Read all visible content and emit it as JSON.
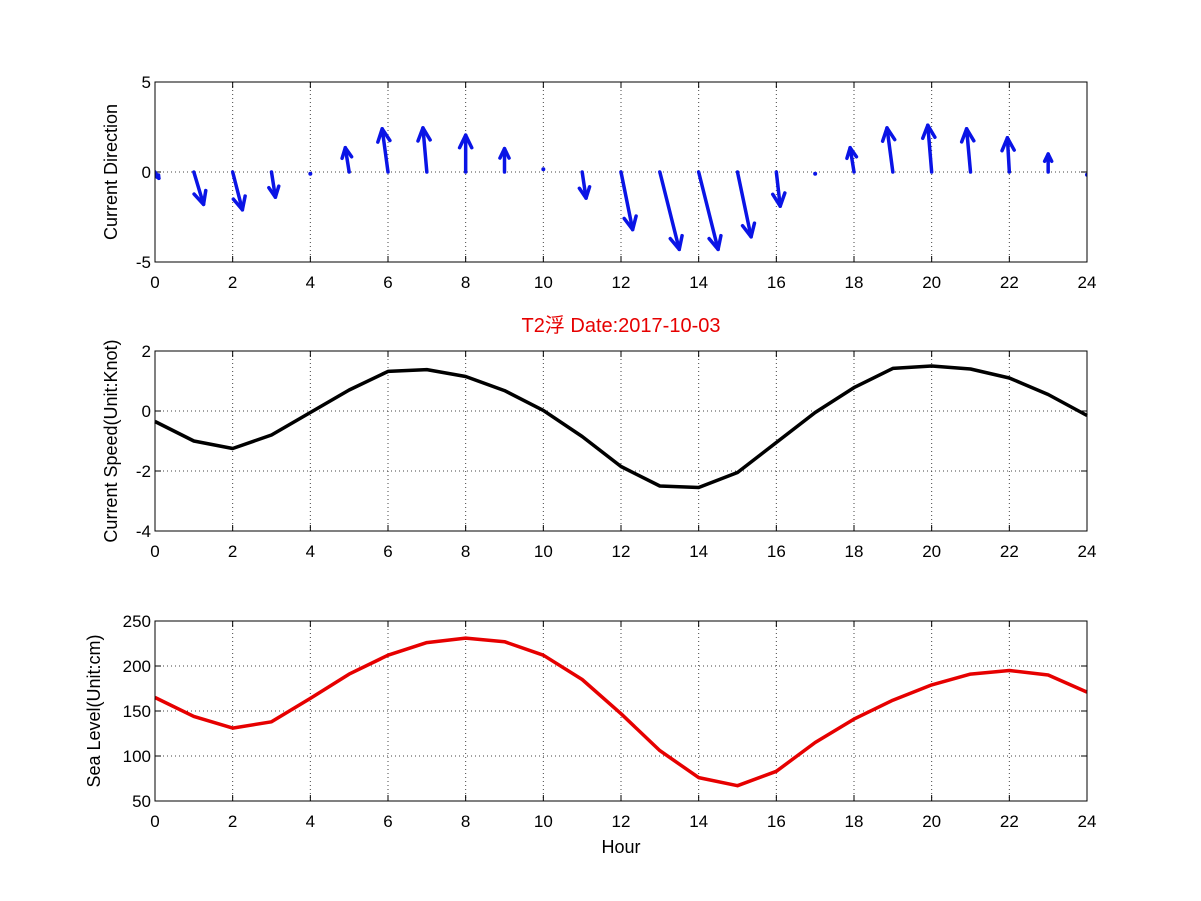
{
  "figure_title": "T2浮   Date:2017-10-03",
  "colors": {
    "quiver": "#0a14e6",
    "speed": "#000000",
    "sea_level": "#e60000",
    "title": "#e60000"
  },
  "chart_data": [
    {
      "type": "quiver",
      "ylabel": "Current Direction",
      "xlabel": "",
      "xlim": [
        0,
        24
      ],
      "ylim": [
        -5,
        5
      ],
      "xticks": [
        0,
        2,
        4,
        6,
        8,
        10,
        12,
        14,
        16,
        18,
        20,
        22,
        24
      ],
      "yticks": [
        -5,
        0,
        5
      ],
      "grid": true,
      "arrows": [
        {
          "x": 0,
          "u": 0.1,
          "v": -0.35
        },
        {
          "x": 1,
          "u": 0.25,
          "v": -1.8
        },
        {
          "x": 2,
          "u": 0.25,
          "v": -2.1
        },
        {
          "x": 3,
          "u": 0.1,
          "v": -1.4
        },
        {
          "x": 4,
          "u": 0.0,
          "v": -0.1
        },
        {
          "x": 5,
          "u": -0.1,
          "v": 1.35
        },
        {
          "x": 6,
          "u": -0.15,
          "v": 2.4
        },
        {
          "x": 7,
          "u": -0.1,
          "v": 2.45
        },
        {
          "x": 8,
          "u": 0.0,
          "v": 2.05
        },
        {
          "x": 9,
          "u": 0.0,
          "v": 1.3
        },
        {
          "x": 10,
          "u": 0.0,
          "v": 0.15
        },
        {
          "x": 11,
          "u": 0.1,
          "v": -1.45
        },
        {
          "x": 12,
          "u": 0.3,
          "v": -3.2
        },
        {
          "x": 13,
          "u": 0.5,
          "v": -4.3
        },
        {
          "x": 14,
          "u": 0.5,
          "v": -4.3
        },
        {
          "x": 15,
          "u": 0.35,
          "v": -3.6
        },
        {
          "x": 16,
          "u": 0.1,
          "v": -1.9
        },
        {
          "x": 17,
          "u": 0.0,
          "v": -0.1
        },
        {
          "x": 18,
          "u": -0.1,
          "v": 1.35
        },
        {
          "x": 19,
          "u": -0.15,
          "v": 2.45
        },
        {
          "x": 20,
          "u": -0.1,
          "v": 2.6
        },
        {
          "x": 21,
          "u": -0.1,
          "v": 2.4
        },
        {
          "x": 22,
          "u": -0.05,
          "v": 1.9
        },
        {
          "x": 23,
          "u": 0.0,
          "v": 1.0
        },
        {
          "x": 24,
          "u": 0.0,
          "v": -0.15
        }
      ]
    },
    {
      "type": "line",
      "ylabel": "Current Speed(Unit:Knot)",
      "xlabel": "",
      "xlim": [
        0,
        24
      ],
      "ylim": [
        -4,
        2
      ],
      "xticks": [
        0,
        2,
        4,
        6,
        8,
        10,
        12,
        14,
        16,
        18,
        20,
        22,
        24
      ],
      "yticks": [
        -4,
        -2,
        0,
        2
      ],
      "grid": true,
      "x": [
        0,
        1,
        2,
        3,
        4,
        5,
        6,
        7,
        8,
        9,
        10,
        11,
        12,
        13,
        14,
        15,
        16,
        17,
        18,
        19,
        20,
        21,
        22,
        23,
        24
      ],
      "series": [
        {
          "values": [
            -0.35,
            -1.0,
            -1.25,
            -0.8,
            -0.05,
            0.7,
            1.32,
            1.38,
            1.15,
            0.68,
            0.02,
            -0.85,
            -1.85,
            -2.5,
            -2.55,
            -2.05,
            -1.05,
            -0.05,
            0.78,
            1.42,
            1.5,
            1.4,
            1.1,
            0.55,
            -0.15
          ]
        }
      ]
    },
    {
      "type": "line",
      "ylabel": "Sea Level(Unit:cm)",
      "xlabel": "Hour",
      "xlim": [
        0,
        24
      ],
      "ylim": [
        50,
        250
      ],
      "xticks": [
        0,
        2,
        4,
        6,
        8,
        10,
        12,
        14,
        16,
        18,
        20,
        22,
        24
      ],
      "yticks": [
        50,
        100,
        150,
        200,
        250
      ],
      "grid": true,
      "x": [
        0,
        1,
        2,
        3,
        4,
        5,
        6,
        7,
        8,
        9,
        10,
        11,
        12,
        13,
        14,
        15,
        16,
        17,
        18,
        19,
        20,
        21,
        22,
        23,
        24
      ],
      "series": [
        {
          "values": [
            165,
            144,
            131,
            138,
            164,
            191,
            212,
            226,
            231,
            227,
            212,
            185,
            147,
            106,
            76,
            67,
            83,
            115,
            141,
            162,
            179,
            191,
            195,
            190,
            171
          ]
        }
      ]
    }
  ]
}
